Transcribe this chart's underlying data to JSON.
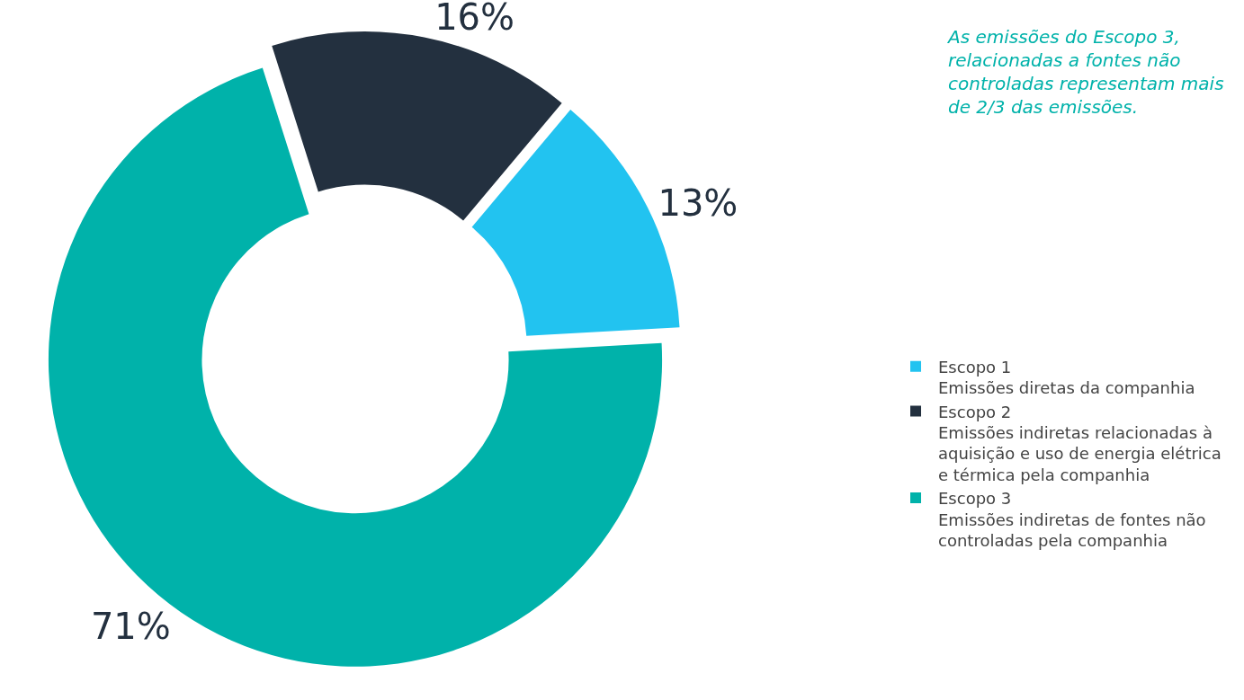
{
  "chart_data": {
    "type": "donut",
    "categories": [
      "Escopo 1\nEmissões diretas da companhia",
      "Escopo 2\nEmissões indiretas relacionadas à aquisição e uso de energia elétrica e térmica pela companhia",
      "Escopo 3\nEmissões indiretas de fontes não controladas pela companhia"
    ],
    "values": [
      13,
      16,
      71
    ],
    "colors": [
      "#22c3f0",
      "#23303f",
      "#00b2aa"
    ],
    "value_labels": [
      "13%",
      "16%",
      "71%"
    ],
    "annotations": [
      "As emissões do Escopo 3, relacionadas a fontes não controladas representam mais de 2/3 das emissões."
    ],
    "legend": "right"
  }
}
